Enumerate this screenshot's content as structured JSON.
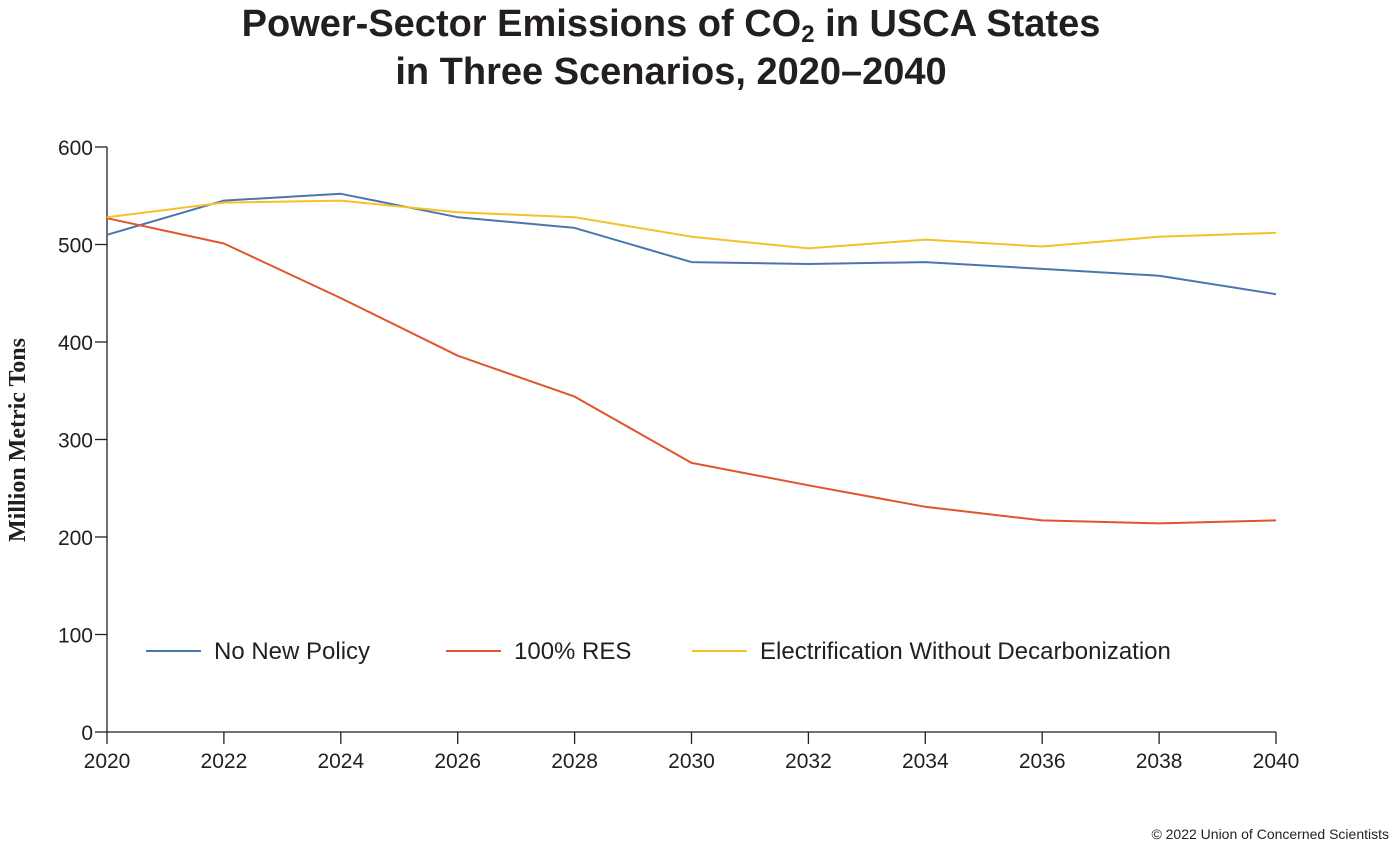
{
  "title": {
    "line1_prefix": "Power-Sector Emissions of CO",
    "line1_subscript": "2",
    "line1_suffix": " in USCA States",
    "line2": "in Three Scenarios, 2020–2040"
  },
  "copyright": "© 2022 Union of Concerned Scientists",
  "chart_data": {
    "type": "line",
    "title": "Power-Sector Emissions of CO2 in USCA States in Three Scenarios, 2020–2040",
    "xlabel": "",
    "ylabel": "Million Metric Tons",
    "x": [
      2020,
      2022,
      2024,
      2026,
      2028,
      2030,
      2032,
      2034,
      2036,
      2038,
      2040
    ],
    "xlim": [
      2020,
      2040
    ],
    "ylim": [
      0,
      600
    ],
    "x_ticks": [
      "2020",
      "2022",
      "2024",
      "2026",
      "2028",
      "2030",
      "2032",
      "2034",
      "2036",
      "2038",
      "2040"
    ],
    "y_ticks": [
      "0",
      "100",
      "200",
      "300",
      "400",
      "500",
      "600"
    ],
    "y_tick_values": [
      0,
      100,
      200,
      300,
      400,
      500,
      600
    ],
    "grid": false,
    "legend_position": "bottom-center inside plot",
    "series": [
      {
        "name": "No New Policy",
        "color": "#4a76b0",
        "values": [
          510,
          545,
          552,
          528,
          517,
          482,
          480,
          482,
          475,
          468,
          449
        ]
      },
      {
        "name": "100% RES",
        "color": "#e0552b",
        "values": [
          527,
          501,
          445,
          386,
          344,
          276,
          253,
          231,
          217,
          214,
          217
        ]
      },
      {
        "name": "Electrification Without Decarbonization",
        "color": "#f5c12a",
        "values": [
          528,
          543,
          545,
          533,
          528,
          508,
          496,
          505,
          498,
          508,
          512
        ]
      }
    ]
  }
}
